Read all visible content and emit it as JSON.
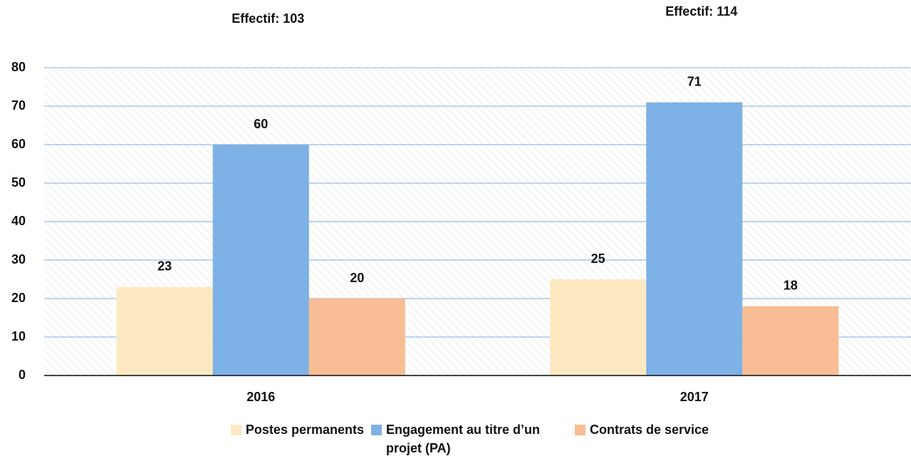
{
  "chart_data": {
    "type": "bar",
    "annotations": [
      "Effectif: 103",
      "Effectif: 114"
    ],
    "categories": [
      "2016",
      "2017"
    ],
    "series": [
      {
        "name": "Postes permanents",
        "color": "#fde9c1",
        "values": [
          23,
          25
        ]
      },
      {
        "name": "Engagement au titre d’un projet (PA)",
        "color": "#7eb1e5",
        "values": [
          60,
          71
        ]
      },
      {
        "name": "Contrats de service",
        "color": "#f8bd94",
        "values": [
          20,
          18
        ]
      }
    ],
    "ylim": [
      0,
      80
    ],
    "yticks": [
      0,
      10,
      20,
      30,
      40,
      50,
      60,
      70,
      80
    ],
    "grid": true,
    "legend": "bottom"
  }
}
